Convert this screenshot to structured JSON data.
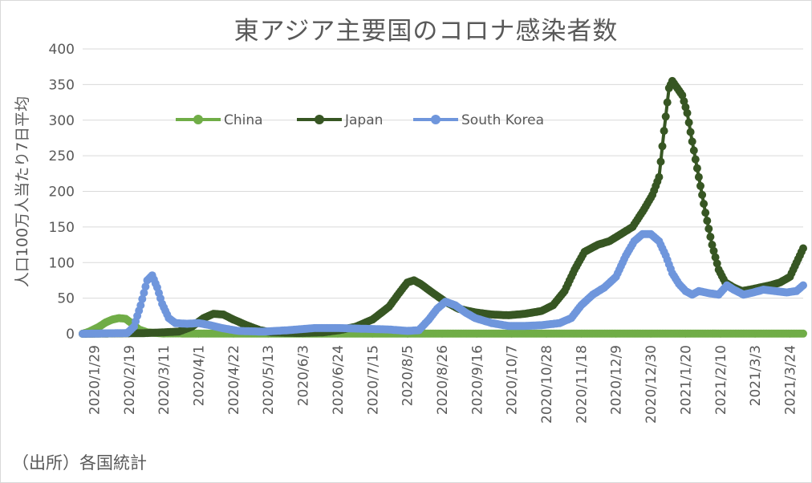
{
  "source_note": "（出所）各国統計",
  "chart_data": {
    "type": "line",
    "title": "東アジア主要国のコロナ感染者数",
    "xlabel": "",
    "ylabel": "人口100万人当たり7日平均",
    "ylim": [
      0,
      400
    ],
    "yticks": [
      0,
      50,
      100,
      150,
      200,
      250,
      300,
      350,
      400
    ],
    "grid": true,
    "legend": "top-left inside plot",
    "x_tick_labels": [
      "2020/1/29",
      "2020/2/19",
      "2020/3/11",
      "2020/4/1",
      "2020/4/22",
      "2020/5/13",
      "2020/6/3",
      "2020/6/24",
      "2020/7/15",
      "2020/8/5",
      "2020/8/26",
      "2020/9/16",
      "2020/10/7",
      "2020/10/28",
      "2020/11/18",
      "2020/12/9",
      "2020/12/30",
      "2021/1/20",
      "2021/2/10",
      "2021/3/3",
      "2021/3/24"
    ],
    "x_start": "2020-01-22",
    "x_end": "2021-04-01",
    "series": [
      {
        "name": "China",
        "color": "#70ad47",
        "points": [
          [
            "2020-01-22",
            0
          ],
          [
            "2020-01-26",
            3
          ],
          [
            "2020-02-01",
            10
          ],
          [
            "2020-02-05",
            16
          ],
          [
            "2020-02-09",
            20
          ],
          [
            "2020-02-13",
            22
          ],
          [
            "2020-02-17",
            21
          ],
          [
            "2020-02-21",
            14
          ],
          [
            "2020-02-25",
            6
          ],
          [
            "2020-03-01",
            2
          ],
          [
            "2020-03-10",
            0.5
          ],
          [
            "2020-04-01",
            0.3
          ],
          [
            "2021-04-01",
            0.2
          ]
        ]
      },
      {
        "name": "Japan",
        "color": "#375623",
        "points": [
          [
            "2020-01-22",
            0
          ],
          [
            "2020-03-01",
            1
          ],
          [
            "2020-03-20",
            3
          ],
          [
            "2020-03-28",
            10
          ],
          [
            "2020-04-04",
            22
          ],
          [
            "2020-04-10",
            28
          ],
          [
            "2020-04-16",
            27
          ],
          [
            "2020-04-22",
            20
          ],
          [
            "2020-04-30",
            12
          ],
          [
            "2020-05-08",
            5
          ],
          [
            "2020-05-15",
            2
          ],
          [
            "2020-05-31",
            1
          ],
          [
            "2020-06-15",
            2
          ],
          [
            "2020-06-25",
            5
          ],
          [
            "2020-07-05",
            10
          ],
          [
            "2020-07-15",
            20
          ],
          [
            "2020-07-25",
            38
          ],
          [
            "2020-08-01",
            60
          ],
          [
            "2020-08-05",
            72
          ],
          [
            "2020-08-09",
            75
          ],
          [
            "2020-08-13",
            70
          ],
          [
            "2020-08-20",
            58
          ],
          [
            "2020-08-28",
            45
          ],
          [
            "2020-09-05",
            35
          ],
          [
            "2020-09-15",
            30
          ],
          [
            "2020-09-25",
            27
          ],
          [
            "2020-10-05",
            26
          ],
          [
            "2020-10-15",
            28
          ],
          [
            "2020-10-25",
            32
          ],
          [
            "2020-11-01",
            40
          ],
          [
            "2020-11-08",
            60
          ],
          [
            "2020-11-14",
            90
          ],
          [
            "2020-11-20",
            115
          ],
          [
            "2020-11-28",
            125
          ],
          [
            "2020-12-05",
            130
          ],
          [
            "2020-12-12",
            140
          ],
          [
            "2020-12-19",
            150
          ],
          [
            "2020-12-26",
            175
          ],
          [
            "2020-12-31",
            195
          ],
          [
            "2021-01-04",
            220
          ],
          [
            "2021-01-07",
            285
          ],
          [
            "2021-01-10",
            345
          ],
          [
            "2021-01-12",
            355
          ],
          [
            "2021-01-15",
            345
          ],
          [
            "2021-01-18",
            335
          ],
          [
            "2021-01-21",
            310
          ],
          [
            "2021-01-24",
            270
          ],
          [
            "2021-01-28",
            220
          ],
          [
            "2021-02-01",
            170
          ],
          [
            "2021-02-05",
            125
          ],
          [
            "2021-02-09",
            90
          ],
          [
            "2021-02-13",
            72
          ],
          [
            "2021-02-18",
            65
          ],
          [
            "2021-02-23",
            60
          ],
          [
            "2021-02-28",
            62
          ],
          [
            "2021-03-06",
            65
          ],
          [
            "2021-03-12",
            68
          ],
          [
            "2021-03-18",
            72
          ],
          [
            "2021-03-24",
            80
          ],
          [
            "2021-03-28",
            100
          ],
          [
            "2021-04-01",
            120
          ]
        ]
      },
      {
        "name": "South Korea",
        "color": "#6f96dc",
        "points": [
          [
            "2020-01-22",
            0
          ],
          [
            "2020-02-18",
            1
          ],
          [
            "2020-02-22",
            10
          ],
          [
            "2020-02-26",
            40
          ],
          [
            "2020-03-01",
            75
          ],
          [
            "2020-03-04",
            82
          ],
          [
            "2020-03-07",
            65
          ],
          [
            "2020-03-10",
            42
          ],
          [
            "2020-03-14",
            22
          ],
          [
            "2020-03-18",
            15
          ],
          [
            "2020-03-25",
            14
          ],
          [
            "2020-04-01",
            15
          ],
          [
            "2020-04-08",
            12
          ],
          [
            "2020-04-15",
            8
          ],
          [
            "2020-04-25",
            4
          ],
          [
            "2020-05-10",
            3
          ],
          [
            "2020-05-25",
            5
          ],
          [
            "2020-06-10",
            8
          ],
          [
            "2020-06-25",
            8
          ],
          [
            "2020-07-10",
            7
          ],
          [
            "2020-07-25",
            6
          ],
          [
            "2020-08-05",
            4
          ],
          [
            "2020-08-12",
            5
          ],
          [
            "2020-08-18",
            20
          ],
          [
            "2020-08-23",
            35
          ],
          [
            "2020-08-28",
            45
          ],
          [
            "2020-09-03",
            40
          ],
          [
            "2020-09-09",
            30
          ],
          [
            "2020-09-15",
            22
          ],
          [
            "2020-09-25",
            15
          ],
          [
            "2020-10-05",
            11
          ],
          [
            "2020-10-15",
            11
          ],
          [
            "2020-10-25",
            12
          ],
          [
            "2020-11-05",
            15
          ],
          [
            "2020-11-12",
            22
          ],
          [
            "2020-11-18",
            40
          ],
          [
            "2020-11-25",
            55
          ],
          [
            "2020-12-02",
            65
          ],
          [
            "2020-12-09",
            80
          ],
          [
            "2020-12-15",
            110
          ],
          [
            "2020-12-20",
            130
          ],
          [
            "2020-12-25",
            140
          ],
          [
            "2020-12-30",
            140
          ],
          [
            "2021-01-04",
            130
          ],
          [
            "2021-01-08",
            110
          ],
          [
            "2021-01-12",
            85
          ],
          [
            "2021-01-16",
            70
          ],
          [
            "2021-01-20",
            60
          ],
          [
            "2021-01-24",
            55
          ],
          [
            "2021-01-28",
            60
          ],
          [
            "2021-02-03",
            57
          ],
          [
            "2021-02-09",
            55
          ],
          [
            "2021-02-14",
            68
          ],
          [
            "2021-02-18",
            62
          ],
          [
            "2021-02-24",
            55
          ],
          [
            "2021-03-02",
            58
          ],
          [
            "2021-03-08",
            62
          ],
          [
            "2021-03-15",
            60
          ],
          [
            "2021-03-22",
            58
          ],
          [
            "2021-03-28",
            60
          ],
          [
            "2021-04-01",
            68
          ]
        ]
      }
    ]
  }
}
